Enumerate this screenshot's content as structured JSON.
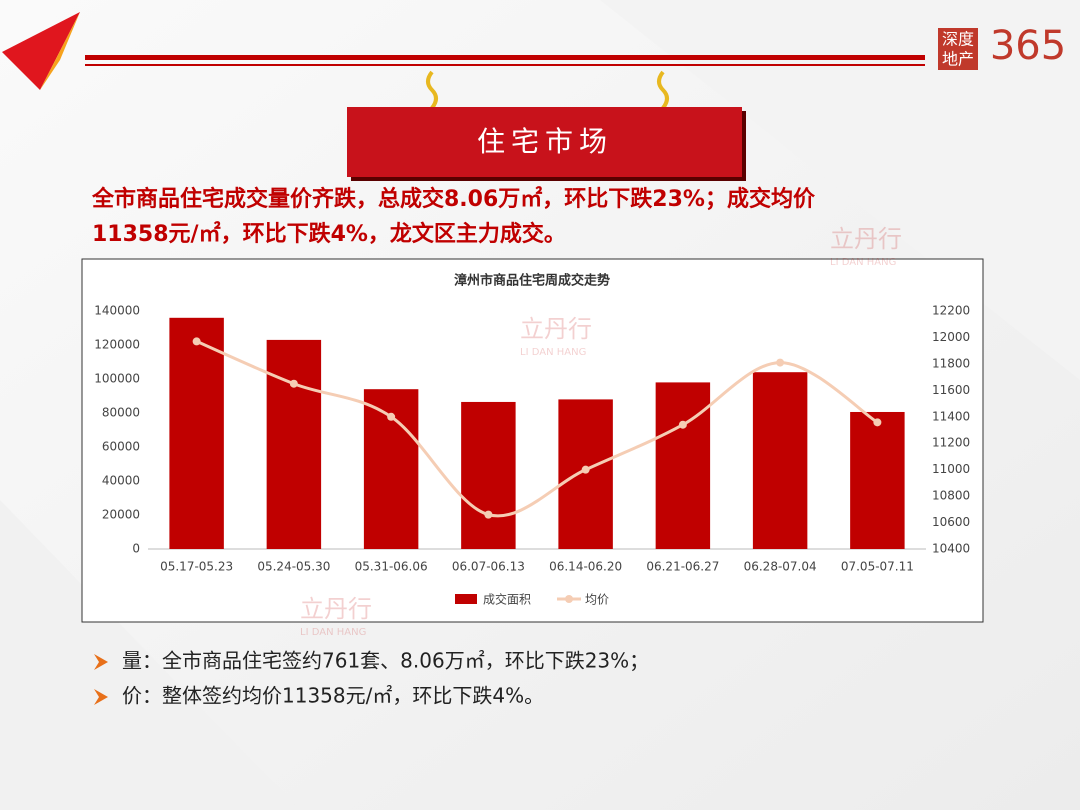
{
  "header": {
    "logo_text_1": "深度",
    "logo_text_2": "地产",
    "logo_number": "365",
    "section_title": "住宅市场"
  },
  "headline": [
    "全市商品住宅成交量价齐跌，总成交8.06万㎡，环比下跌23%；成交均价",
    "11358元/㎡，环比下跌4%，龙文区主力成交。"
  ],
  "watermark": {
    "name": "立丹行",
    "latin": "LI DAN HANG"
  },
  "chart_data": {
    "type": "combo",
    "title": "漳州市商品住宅周成交走势",
    "categories": [
      "05.17-05.23",
      "05.24-05.30",
      "05.31-06.06",
      "06.07-06.13",
      "06.14-06.20",
      "06.21-06.27",
      "06.28-07.04",
      "07.05-07.11"
    ],
    "series": [
      {
        "name": "成交面积",
        "type": "bar",
        "color": "#c00000",
        "values": [
          136000,
          123000,
          94000,
          86500,
          88000,
          98000,
          104000,
          80600
        ]
      },
      {
        "name": "均价",
        "type": "line",
        "axis": "y2",
        "color": "#f5cdb4",
        "values": [
          11970,
          11650,
          11400,
          10660,
          11000,
          11340,
          11810,
          11358
        ]
      }
    ],
    "ylim": [
      0,
      140000
    ],
    "yticks": [
      0,
      20000,
      40000,
      60000,
      80000,
      100000,
      120000,
      140000
    ],
    "y2lim": [
      10400,
      12200
    ],
    "y2ticks": [
      10400,
      10600,
      10800,
      11000,
      11200,
      11400,
      11600,
      11800,
      12000,
      12200
    ],
    "legend": "bottom",
    "grid": false
  },
  "bullets": [
    "量：全市商品住宅签约761套、8.06万㎡，环比下跌23%；",
    "价：整体签约均价11358元/㎡，环比下跌4%。"
  ]
}
